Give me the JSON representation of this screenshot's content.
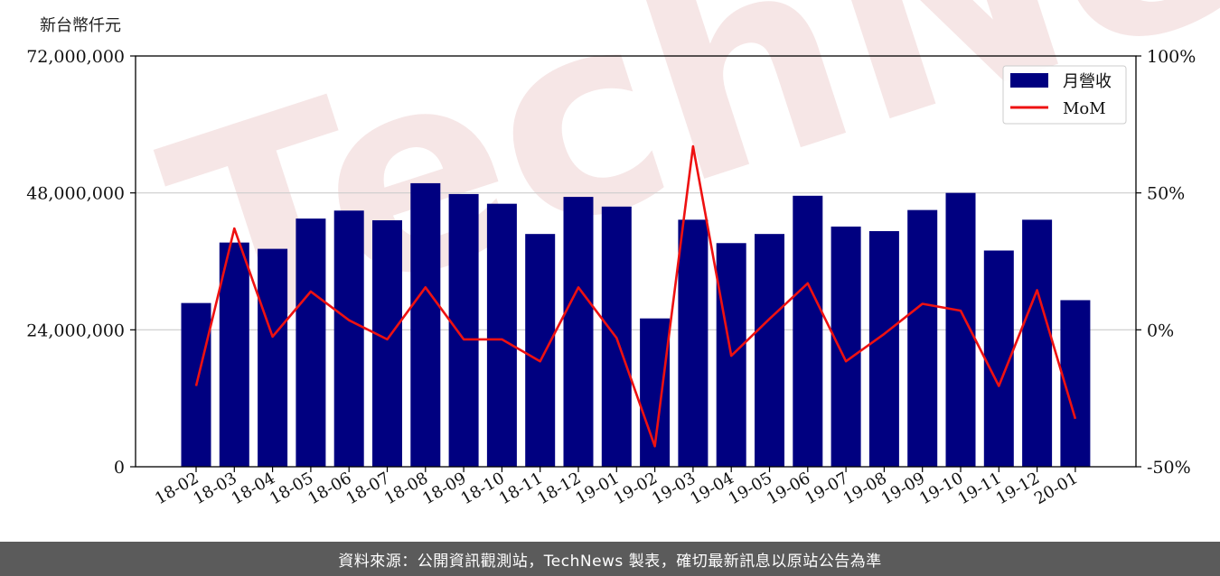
{
  "unit_label": "新台幣仟元",
  "footer_text": "資料來源：公開資訊觀測站，TechNews 製表，確切最新訊息以原站公告為準",
  "watermark_text": "TechNews",
  "colors": {
    "bar": "#000080",
    "line": "#ee1111",
    "grid": "#cccccc",
    "axis": "#000000",
    "footer": "#5b5b5b"
  },
  "chart_data": {
    "type": "bar",
    "categories": [
      "18-02",
      "18-03",
      "18-04",
      "18-05",
      "18-06",
      "18-07",
      "18-08",
      "18-09",
      "18-10",
      "18-11",
      "18-12",
      "19-01",
      "19-02",
      "19-03",
      "19-04",
      "19-05",
      "19-06",
      "19-07",
      "19-08",
      "19-09",
      "19-10",
      "19-11",
      "19-12",
      "20-01"
    ],
    "series": [
      {
        "name": "月營收",
        "type": "bar",
        "axis": "left",
        "values": [
          28700000,
          39300000,
          38200000,
          43500000,
          44900000,
          43200000,
          49700000,
          47800000,
          46100000,
          40800000,
          47300000,
          45600000,
          26000000,
          43300000,
          39200000,
          40800000,
          47500000,
          42100000,
          41300000,
          45000000,
          48000000,
          37900000,
          43300000,
          29200000
        ]
      },
      {
        "name": "MoM",
        "type": "line",
        "axis": "right",
        "values": [
          -20.5,
          37.0,
          -2.5,
          14.0,
          3.5,
          -3.5,
          15.5,
          -3.5,
          -3.5,
          -11.5,
          15.5,
          -3.0,
          -42.5,
          67.0,
          -9.5,
          4.0,
          17.0,
          -11.5,
          -1.5,
          9.5,
          7.0,
          -20.5,
          14.5,
          -32.5
        ]
      }
    ],
    "left_axis": {
      "ylim": [
        0,
        72000000
      ],
      "ticks": [
        "0",
        "24,000,000",
        "48,000,000",
        "72,000,000"
      ],
      "tick_values": [
        0,
        24000000,
        48000000,
        72000000
      ]
    },
    "right_axis": {
      "ylim": [
        -50,
        100
      ],
      "ticks": [
        "-50%",
        "0%",
        "50%",
        "100%"
      ],
      "tick_values": [
        -50,
        0,
        50,
        100
      ]
    },
    "grid": "horizontal",
    "legend": "top-right"
  }
}
